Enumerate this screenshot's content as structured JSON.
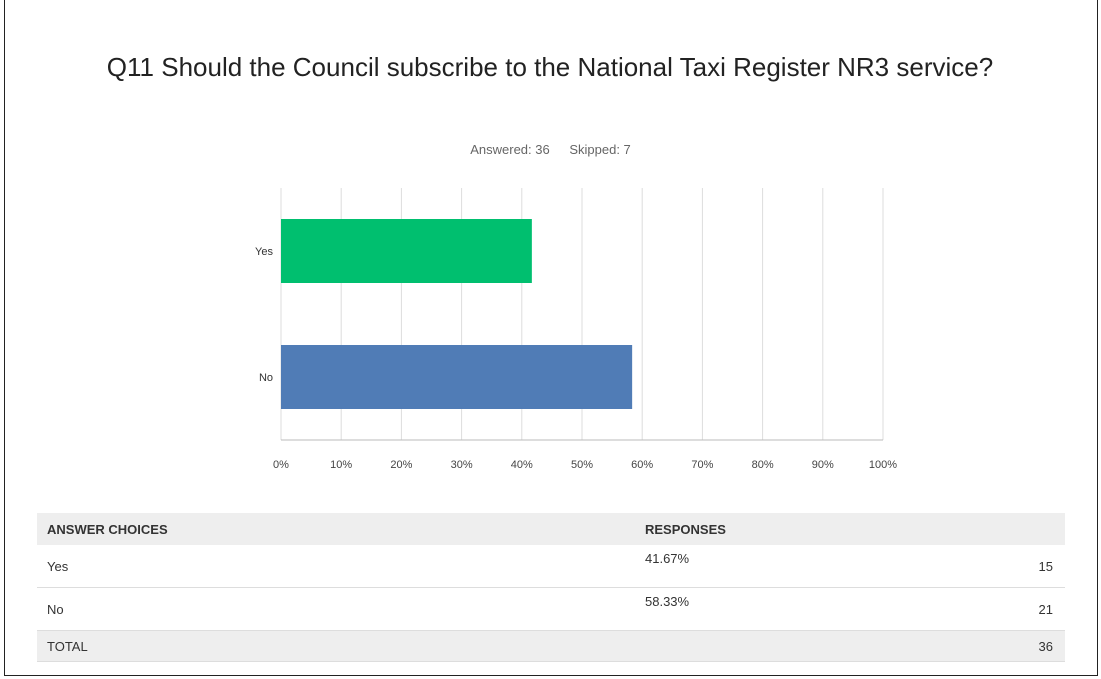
{
  "question": {
    "title": "Q11 Should the Council subscribe to the National Taxi Register NR3 service?",
    "answered_label": "Answered: 36",
    "skipped_label": "Skipped: 7"
  },
  "colors": {
    "yes_bar": "#00bf6f",
    "no_bar": "#507cb6",
    "grid": "#dddddd"
  },
  "chart_data": {
    "type": "bar",
    "orientation": "horizontal",
    "categories": [
      "Yes",
      "No"
    ],
    "values": [
      41.67,
      58.33
    ],
    "xlim": [
      0,
      100
    ],
    "x_ticks": [
      "0%",
      "10%",
      "20%",
      "30%",
      "40%",
      "50%",
      "60%",
      "70%",
      "80%",
      "90%",
      "100%"
    ],
    "grid": true
  },
  "table": {
    "headers": [
      "ANSWER CHOICES",
      "RESPONSES"
    ],
    "rows": [
      {
        "choice": "Yes",
        "percent": "41.67%",
        "count": "15"
      },
      {
        "choice": "No",
        "percent": "58.33%",
        "count": "21"
      }
    ],
    "total": {
      "label": "TOTAL",
      "count": "36"
    }
  }
}
